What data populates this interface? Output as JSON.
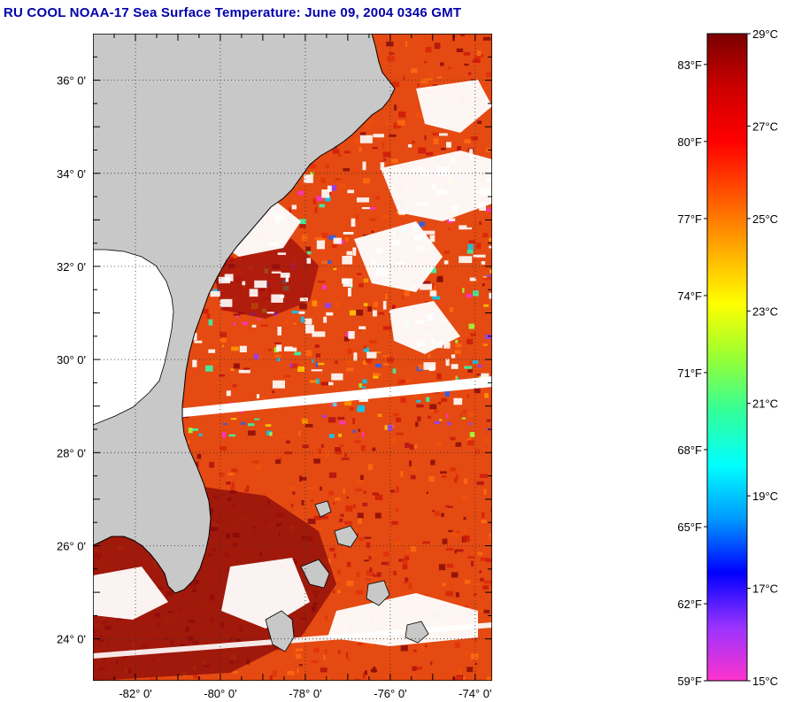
{
  "title": "RU COOL  NOAA-17  Sea Surface Temperature:  June 09, 2004 0346 GMT",
  "map": {
    "lon_range": [
      -83.0,
      -73.6
    ],
    "lat_range": [
      23.1,
      37.0
    ],
    "lat_labels": [
      {
        "lat": 36,
        "text": "36° 0'"
      },
      {
        "lat": 34,
        "text": "34° 0'"
      },
      {
        "lat": 32,
        "text": "32° 0'"
      },
      {
        "lat": 30,
        "text": "30° 0'"
      },
      {
        "lat": 28,
        "text": "28° 0'"
      },
      {
        "lat": 26,
        "text": "26° 0'"
      },
      {
        "lat": 24,
        "text": "24° 0'"
      }
    ],
    "lon_labels": [
      {
        "lon": -82,
        "text": "-82° 0'"
      },
      {
        "lon": -80,
        "text": "-80° 0'"
      },
      {
        "lon": -78,
        "text": "-78° 0'"
      },
      {
        "lon": -76,
        "text": "-76° 0'"
      },
      {
        "lon": -74,
        "text": "-74° 0'"
      }
    ],
    "colors": {
      "land": "#c8c8c8",
      "cloud": "#ffffff",
      "frame": "#000000",
      "grid": "#555555",
      "gulf_stream": "#e03a0a",
      "warm_core": "#8a0a0a",
      "shelf_water": "#ff7a10"
    }
  },
  "colorbar": {
    "min_c": 15,
    "max_c": 29,
    "celsius_labels": [
      "29°C",
      "27°C",
      "25°C",
      "23°C",
      "21°C",
      "19°C",
      "17°C",
      "15°C"
    ],
    "celsius_values": [
      29,
      27,
      25,
      23,
      21,
      19,
      17,
      15
    ],
    "fahrenheit_labels": [
      "83°F",
      "80°F",
      "77°F",
      "74°F",
      "71°F",
      "68°F",
      "65°F",
      "62°F",
      "59°F"
    ],
    "fahrenheit_values": [
      83,
      80,
      77,
      74,
      71,
      68,
      65,
      62,
      59
    ],
    "stops": [
      "#ff33cc",
      "#9933ff",
      "#0000ff",
      "#0099ff",
      "#00ffff",
      "#33ff99",
      "#99ff33",
      "#ffff00",
      "#ffaa00",
      "#ff5500",
      "#ff0000",
      "#cc0000",
      "#7a0000"
    ]
  }
}
